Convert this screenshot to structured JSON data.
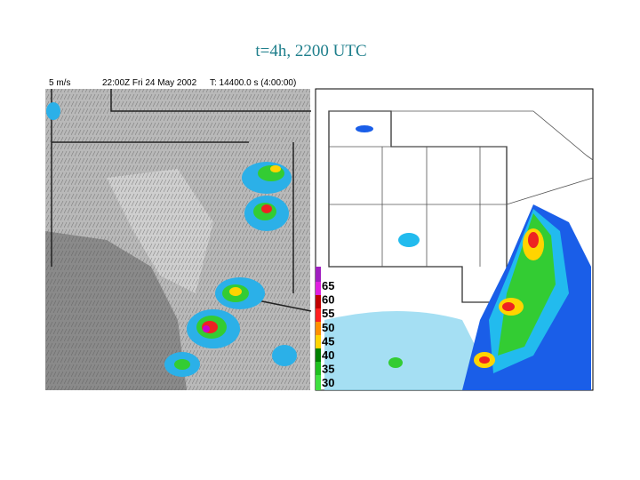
{
  "title": "t=4h, 2200 UTC",
  "left_panel": {
    "wind_scale": "5 m/s",
    "time": "22:00Z Fri 24 May 2002",
    "elapsed": "T: 14400.0 s (4:00:00)"
  },
  "right_panel": {
    "legend": [
      "65",
      "60",
      "55",
      "50",
      "45",
      "40",
      "35",
      "30"
    ]
  }
}
